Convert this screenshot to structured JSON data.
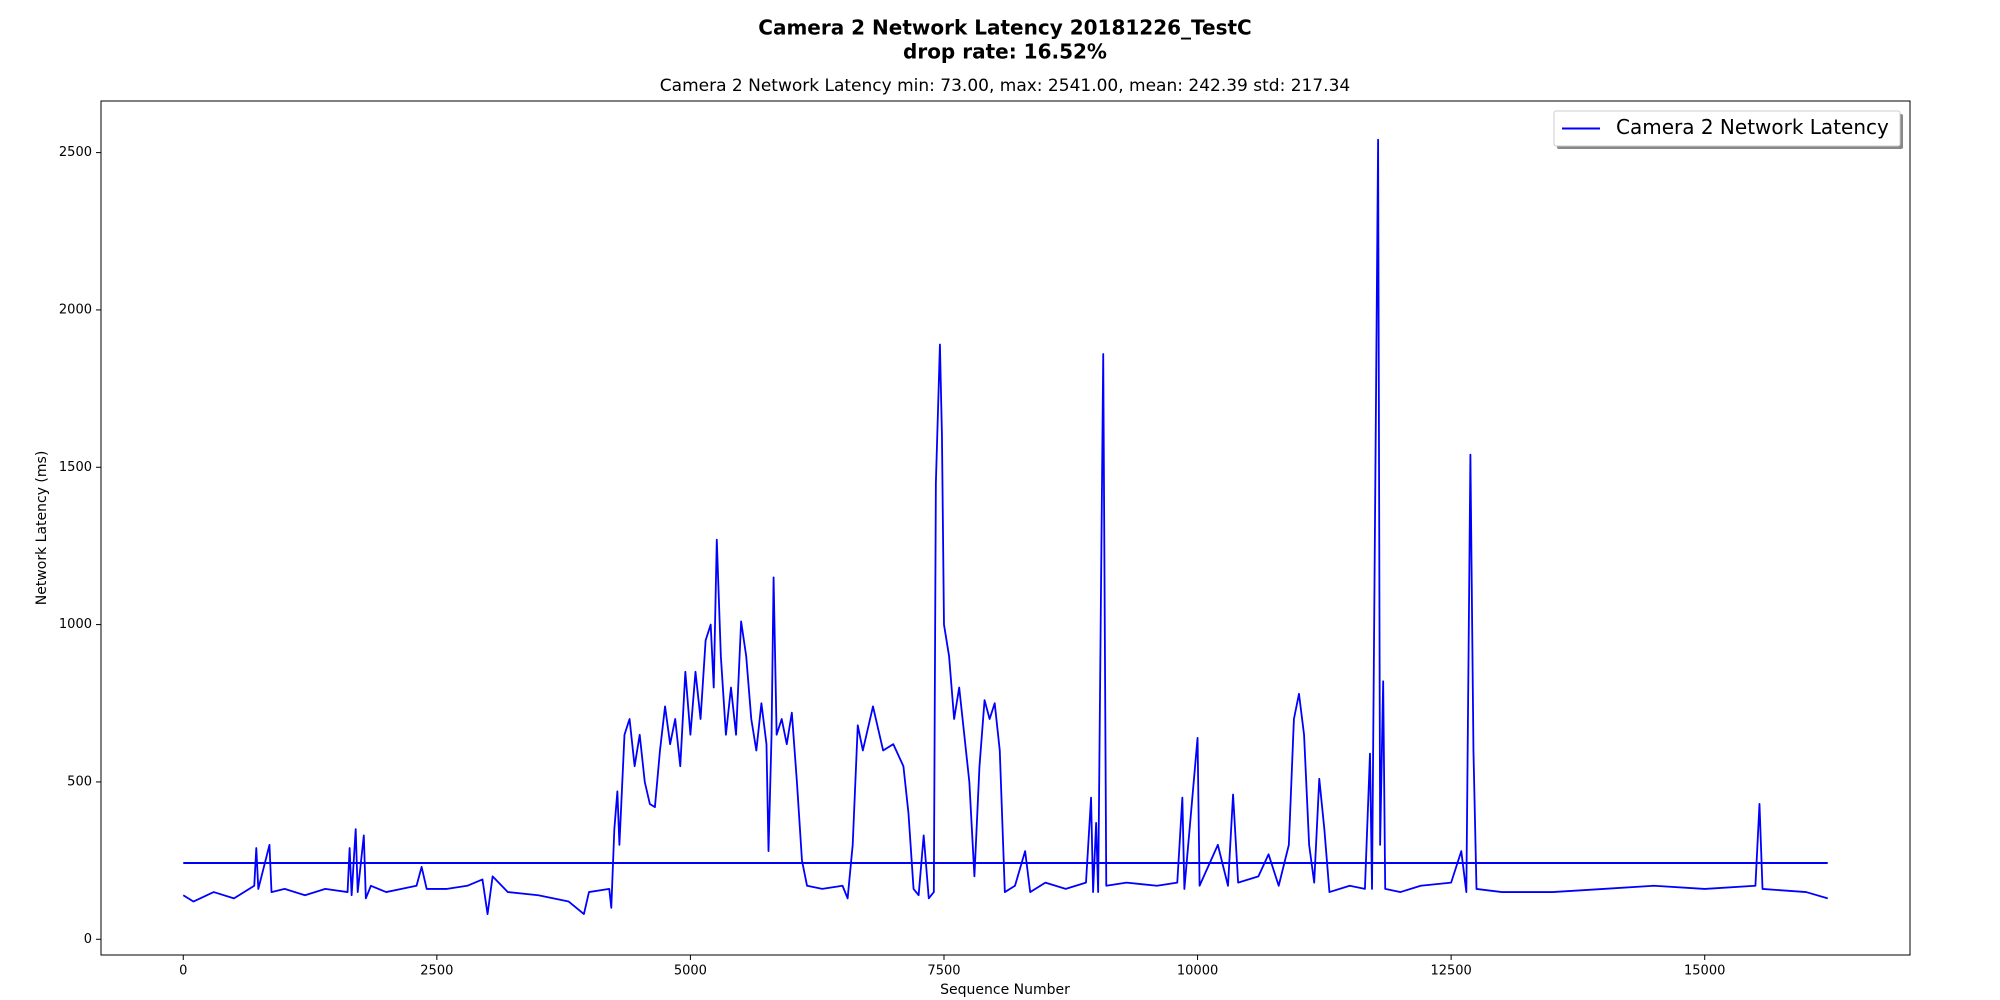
{
  "chart_data": {
    "type": "line",
    "title": "Camera 2 Network Latency 20181226_TestC",
    "subtitle": "drop rate: 16.52%",
    "axes_title": "Camera 2 Network Latency min: 73.00, max: 2541.00, mean: 242.39 std: 217.34",
    "xlabel": "Sequence Number",
    "ylabel": "Network Latency (ms)",
    "xlim": [
      -811,
      17024
    ],
    "ylim": [
      -50,
      2664
    ],
    "xticks": [
      0,
      2500,
      5000,
      7500,
      10000,
      12500,
      15000
    ],
    "yticks": [
      0,
      500,
      1000,
      1500,
      2000,
      2500
    ],
    "legend": "upper right",
    "hlines": [
      {
        "y": 242.39,
        "xmin": 0,
        "xmax": 16213,
        "color": "#0000ff"
      }
    ],
    "series": [
      {
        "name": "Camera 2 Network Latency",
        "color": "#0000ff",
        "x": [
          0,
          100,
          300,
          500,
          700,
          720,
          740,
          850,
          870,
          1000,
          1200,
          1400,
          1620,
          1640,
          1660,
          1700,
          1720,
          1780,
          1800,
          1850,
          2000,
          2300,
          2350,
          2400,
          2600,
          2800,
          2950,
          3000,
          3050,
          3200,
          3500,
          3800,
          3950,
          4000,
          4200,
          4220,
          4250,
          4280,
          4300,
          4350,
          4400,
          4450,
          4500,
          4550,
          4600,
          4650,
          4700,
          4750,
          4800,
          4850,
          4900,
          4950,
          5000,
          5050,
          5100,
          5150,
          5200,
          5230,
          5260,
          5300,
          5350,
          5400,
          5450,
          5500,
          5550,
          5600,
          5650,
          5700,
          5750,
          5770,
          5800,
          5820,
          5850,
          5900,
          5950,
          6000,
          6050,
          6100,
          6150,
          6300,
          6500,
          6550,
          6600,
          6650,
          6700,
          6800,
          6900,
          7000,
          7100,
          7150,
          7200,
          7250,
          7300,
          7350,
          7400,
          7420,
          7460,
          7480,
          7500,
          7550,
          7600,
          7650,
          7700,
          7750,
          7800,
          7850,
          7900,
          7950,
          8000,
          8050,
          8100,
          8200,
          8300,
          8350,
          8500,
          8700,
          8900,
          8950,
          8970,
          9000,
          9020,
          9070,
          9100,
          9300,
          9600,
          9800,
          9850,
          9870,
          10000,
          10020,
          10200,
          10300,
          10350,
          10400,
          10600,
          10700,
          10800,
          10900,
          10950,
          11000,
          11050,
          11100,
          11150,
          11200,
          11250,
          11300,
          11500,
          11650,
          11700,
          11720,
          11780,
          11800,
          11830,
          11850,
          12000,
          12200,
          12500,
          12600,
          12650,
          12690,
          12720,
          12750,
          13000,
          13500,
          14000,
          14500,
          15000,
          15500,
          15540,
          15570,
          16000,
          16213
        ],
        "values": [
          140,
          120,
          150,
          130,
          170,
          290,
          160,
          300,
          150,
          160,
          140,
          160,
          150,
          290,
          140,
          350,
          150,
          330,
          130,
          170,
          150,
          170,
          230,
          160,
          160,
          170,
          190,
          80,
          200,
          150,
          140,
          120,
          80,
          150,
          160,
          100,
          350,
          470,
          300,
          650,
          700,
          550,
          650,
          500,
          430,
          420,
          600,
          740,
          620,
          700,
          550,
          850,
          650,
          850,
          700,
          950,
          1000,
          800,
          1270,
          900,
          650,
          800,
          650,
          1010,
          900,
          700,
          600,
          750,
          620,
          280,
          650,
          1150,
          650,
          700,
          620,
          720,
          500,
          250,
          170,
          160,
          170,
          130,
          300,
          680,
          600,
          740,
          600,
          620,
          550,
          400,
          160,
          140,
          330,
          130,
          150,
          1450,
          1890,
          1600,
          1000,
          900,
          700,
          800,
          650,
          500,
          200,
          550,
          760,
          700,
          750,
          600,
          150,
          170,
          280,
          150,
          180,
          160,
          180,
          450,
          150,
          370,
          150,
          1860,
          170,
          180,
          170,
          180,
          450,
          160,
          640,
          170,
          300,
          170,
          460,
          180,
          200,
          270,
          170,
          300,
          700,
          780,
          650,
          300,
          180,
          510,
          350,
          150,
          170,
          160,
          590,
          160,
          2541,
          300,
          820,
          160,
          150,
          170,
          180,
          280,
          150,
          1540,
          600,
          160,
          150,
          150,
          160,
          170,
          160,
          170,
          430,
          160,
          150,
          130
        ]
      }
    ]
  }
}
